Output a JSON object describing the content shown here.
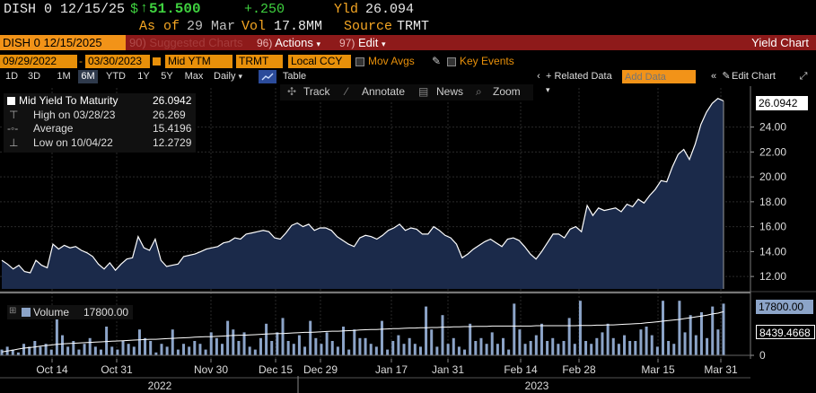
{
  "header": {
    "ticker": "DISH 0 12/15/25",
    "price_prefix": "$",
    "price": "51.500",
    "change": "+.250",
    "yld_label": "Yld",
    "yld_value": "26.094",
    "asof_label": "As of",
    "asof_date": "29 Mar",
    "vol_label": "Vol",
    "vol_value": "17.8MM",
    "source_label": "Source",
    "source_value": "TRMT"
  },
  "menubar": {
    "ticker_box": "DISH 0 12/15/2025",
    "suggested": "Suggested Charts",
    "actions_num": "96)",
    "actions_label": "Actions",
    "edit_num": "97)",
    "edit_label": "Edit",
    "title": "Yield Chart"
  },
  "controls": {
    "start_date": "09/29/2022",
    "end_date": "03/30/2023",
    "field": "Mid YTM",
    "source": "TRMT",
    "currency": "Local CCY",
    "mov_avgs": "Mov Avgs",
    "key_events": "Key Events"
  },
  "tabs": {
    "items": [
      "1D",
      "3D",
      "1M",
      "6M",
      "YTD",
      "1Y",
      "5Y",
      "Max"
    ],
    "active": "6M",
    "period": "Daily",
    "table": "Table",
    "related": "+ Related Data",
    "add_data_placeholder": "Add Data",
    "edit_chart": "Edit Chart"
  },
  "toolbar": {
    "track": "Track",
    "annotate": "Annotate",
    "news": "News",
    "zoom": "Zoom"
  },
  "legend": {
    "series_name": "Mid Yield To Maturity",
    "series_value": "26.0942",
    "high_label": "High on 03/28/23",
    "high_value": "26.269",
    "avg_label": "Average",
    "avg_value": "15.4196",
    "low_label": "Low on 10/04/22",
    "low_value": "12.2729",
    "volume_label": "Volume",
    "volume_value": "17800.00"
  },
  "tags": {
    "last_yield": "26.0942",
    "last_volume": "17800.00",
    "avg_volume": "8439.4668"
  },
  "colors": {
    "accent_amber": "#f5a623",
    "price_green": "#3fd13f",
    "menubar_red": "#8e1a1a",
    "field_orange": "#e8900a",
    "area_fill": "#1b2a4a",
    "volume_bar": "#8ca4c8"
  },
  "chart_data": [
    {
      "type": "area",
      "series": [
        {
          "name": "Mid Yield To Maturity",
          "values": [
            13.3,
            13.0,
            12.6,
            12.9,
            12.4,
            12.3,
            13.3,
            12.9,
            12.7,
            14.6,
            14.2,
            14.5,
            14.3,
            14.4,
            14.1,
            13.9,
            13.6,
            13.0,
            12.6,
            13.1,
            12.5,
            13.0,
            13.4,
            13.5,
            15.2,
            14.3,
            14.1,
            15.0,
            13.3,
            12.8,
            12.9,
            13.0,
            13.6,
            13.7,
            13.8,
            14.0,
            14.2,
            14.3,
            14.4,
            14.7,
            14.8,
            15.1,
            15.0,
            15.4,
            15.5,
            15.6,
            15.7,
            15.6,
            15.1,
            15.0,
            15.5,
            16.1,
            16.3,
            16.0,
            16.2,
            15.7,
            15.9,
            15.9,
            15.7,
            15.2,
            14.9,
            14.6,
            14.4,
            15.1,
            15.3,
            15.2,
            15.0,
            15.3,
            15.7,
            15.9,
            16.2,
            15.7,
            15.9,
            15.8,
            15.4,
            15.4,
            16.0,
            15.7,
            15.3,
            15.1,
            14.6,
            13.5,
            13.8,
            14.2,
            14.5,
            14.8,
            15.0,
            14.7,
            14.4,
            15.0,
            15.1,
            14.9,
            14.4,
            13.8,
            13.4,
            14.0,
            14.7,
            15.4,
            15.4,
            15.1,
            15.8,
            16.0,
            15.6,
            17.7,
            16.9,
            17.5,
            17.3,
            17.4,
            17.5,
            17.2,
            17.8,
            17.6,
            18.2,
            17.9,
            18.5,
            19.0,
            19.7,
            19.6,
            20.8,
            21.8,
            22.2,
            21.4,
            22.6,
            24.2,
            25.2,
            25.9,
            26.3,
            26.1
          ]
        }
      ],
      "x_tick_labels": [
        "Oct 14",
        "Oct 31",
        "Nov 30",
        "Dec 15",
        "Dec 29",
        "Jan 17",
        "Jan 31",
        "Feb 14",
        "Feb 28",
        "Mar 15",
        "Mar 31"
      ],
      "x_year_labels": [
        "2022",
        "2023"
      ],
      "y_tick_labels": [
        "12.00",
        "14.00",
        "16.00",
        "18.00",
        "20.00",
        "22.00",
        "24.00"
      ],
      "ylim": [
        11,
        27
      ],
      "grid": true
    },
    {
      "type": "bar",
      "series": [
        {
          "name": "Volume",
          "values": [
            2,
            3,
            2,
            1,
            4,
            3,
            5,
            3,
            4,
            2,
            13,
            7,
            3,
            5,
            2,
            4,
            6,
            3,
            2,
            10,
            3,
            2,
            5,
            4,
            3,
            9,
            6,
            5,
            1,
            4,
            3,
            9,
            2,
            4,
            3,
            5,
            4,
            2,
            8,
            6,
            4,
            12,
            9,
            5,
            8,
            3,
            2,
            6,
            11,
            5,
            8,
            13,
            5,
            4,
            7,
            3,
            12,
            6,
            4,
            8,
            5,
            3,
            10,
            2,
            9,
            6,
            6,
            4,
            3,
            12,
            2,
            5,
            7,
            4,
            6,
            4,
            3,
            17,
            9,
            3,
            14,
            4,
            6,
            3,
            2,
            11,
            5,
            6,
            4,
            8,
            4,
            6,
            2,
            18,
            9,
            4,
            5,
            7,
            11,
            5,
            6,
            4,
            5,
            13,
            4,
            19,
            5,
            4,
            6,
            8,
            11,
            6,
            4,
            7,
            5,
            5,
            9,
            10,
            7,
            3,
            19,
            5,
            4,
            19,
            8,
            14,
            7,
            15,
            6,
            17,
            9,
            18
          ]
        }
      ],
      "avg_line": [
        1.2,
        1.5,
        1.8,
        2.2,
        2.5,
        2.7,
        2.9,
        3.2,
        3.4,
        3.6,
        3.8,
        4.0,
        4.1,
        4.2,
        4.3,
        4.4,
        4.5,
        4.6,
        4.7,
        4.8,
        4.9,
        5.0,
        5.1,
        5.2,
        5.3,
        5.4,
        5.5,
        5.6,
        5.6,
        5.7,
        5.8,
        5.9,
        6.0,
        6.1,
        6.2,
        6.3,
        6.4,
        6.5,
        6.5,
        6.6,
        6.7,
        6.8,
        6.9,
        7.0,
        7.0,
        7.1,
        7.2,
        7.3,
        7.4,
        7.5,
        7.6,
        7.6,
        7.7,
        7.8,
        7.9,
        8.0,
        8.0,
        8.1,
        8.2,
        8.3,
        8.4,
        8.4,
        8.5,
        8.6,
        8.7,
        8.8,
        8.9,
        9.0,
        9.0,
        9.1,
        9.2,
        9.3,
        9.3,
        9.4,
        9.5,
        9.5,
        9.6,
        9.6,
        9.7,
        9.7,
        9.8,
        9.8,
        9.9,
        9.9,
        10.0,
        10.0,
        10.1,
        10.1,
        10.1,
        10.2,
        10.2,
        10.2,
        10.2,
        10.2,
        10.2,
        10.2,
        10.2,
        10.3,
        10.3,
        10.3,
        10.3,
        10.3,
        10.3,
        10.3,
        10.3,
        10.4,
        10.4,
        10.4,
        10.5,
        10.5,
        10.6,
        10.6,
        10.7,
        10.8,
        10.9,
        11.0,
        11.1,
        11.3,
        11.5,
        11.7,
        11.9,
        12.1,
        12.3,
        12.5,
        12.8,
        13.1,
        13.4,
        13.7,
        14.0,
        14.4,
        14.7,
        15.2
      ],
      "y_tick_labels": [
        "0"
      ],
      "ylim": [
        0,
        20
      ]
    }
  ]
}
